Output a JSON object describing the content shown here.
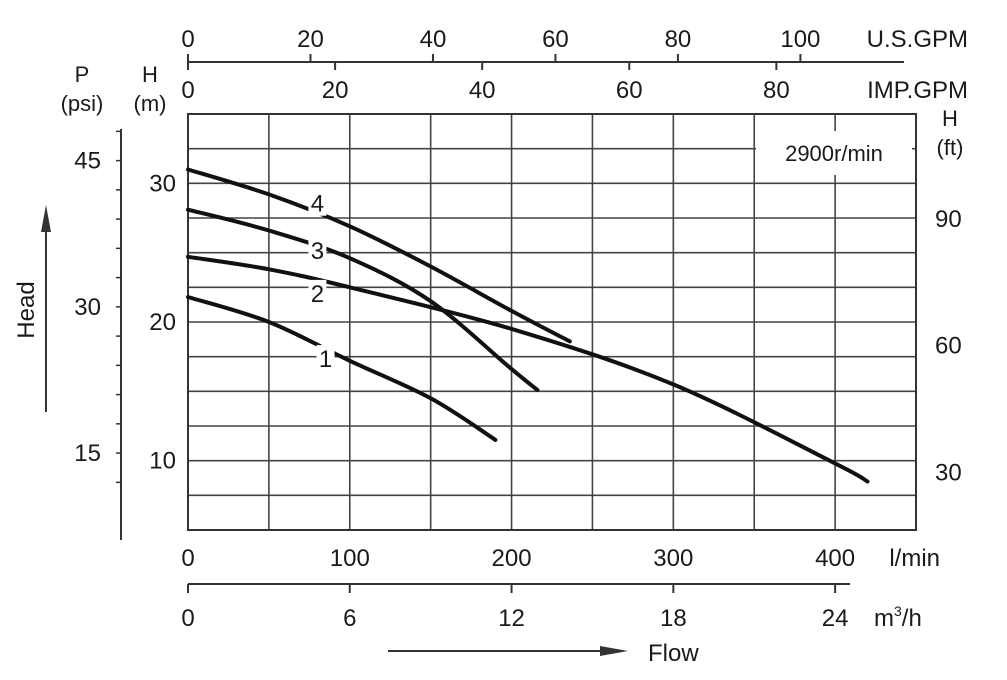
{
  "chart_data": {
    "type": "line",
    "title": "",
    "annotation": "2900r/min",
    "axes": {
      "x_primary": {
        "unit": "l/min",
        "ticks": [
          "0",
          "100",
          "200",
          "300",
          "400"
        ],
        "range": [
          0,
          450
        ]
      },
      "x_m3h": {
        "unit": "m3/h",
        "unit_label": "m",
        "unit_sup": "3",
        "unit_suffix": "/h",
        "ticks": [
          "0",
          "6",
          "12",
          "18",
          "24"
        ]
      },
      "x_usgpm": {
        "unit": "U.S.GPM",
        "ticks": [
          "0",
          "20",
          "40",
          "60",
          "80",
          "100"
        ]
      },
      "x_impgpm": {
        "unit": "IMP.GPM",
        "ticks": [
          "0",
          "20",
          "40",
          "60",
          "80"
        ]
      },
      "y_primary": {
        "unit_line1": "H",
        "unit_line2": "(m)",
        "ticks": [
          "10",
          "20",
          "30"
        ],
        "range": [
          5,
          35
        ]
      },
      "y_psi": {
        "unit_line1": "P",
        "unit_line2": "(psi)",
        "ticks": [
          "15",
          "30",
          "45"
        ]
      },
      "y_ft": {
        "unit_line1": "H",
        "unit_line2": "(ft)",
        "ticks": [
          "30",
          "60",
          "90"
        ]
      },
      "head_label": "Head",
      "flow_label": "Flow"
    },
    "grid": true,
    "x_unit": "l/min",
    "y_unit": "m",
    "series": [
      {
        "name": "1",
        "x": [
          0,
          50,
          100,
          150,
          190
        ],
        "y": [
          21.8,
          20.0,
          17.2,
          14.5,
          11.5
        ]
      },
      {
        "name": "2",
        "x": [
          0,
          50,
          100,
          200,
          300,
          400,
          420
        ],
        "y": [
          24.7,
          23.8,
          22.5,
          19.5,
          15.5,
          9.8,
          8.5
        ]
      },
      {
        "name": "3",
        "x": [
          0,
          50,
          100,
          150,
          200,
          216
        ],
        "y": [
          28.1,
          26.6,
          24.6,
          21.5,
          16.6,
          15.1
        ]
      },
      {
        "name": "4",
        "x": [
          0,
          50,
          100,
          150,
          200,
          236
        ],
        "y": [
          31.0,
          29.2,
          26.9,
          24.0,
          20.8,
          18.6
        ]
      }
    ],
    "series_label_positions": [
      {
        "name": "1",
        "x": 85,
        "y": 17.4
      },
      {
        "name": "2",
        "x": 80,
        "y": 22.1
      },
      {
        "name": "3",
        "x": 80,
        "y": 25.2
      },
      {
        "name": "4",
        "x": 80,
        "y": 28.6
      }
    ]
  }
}
